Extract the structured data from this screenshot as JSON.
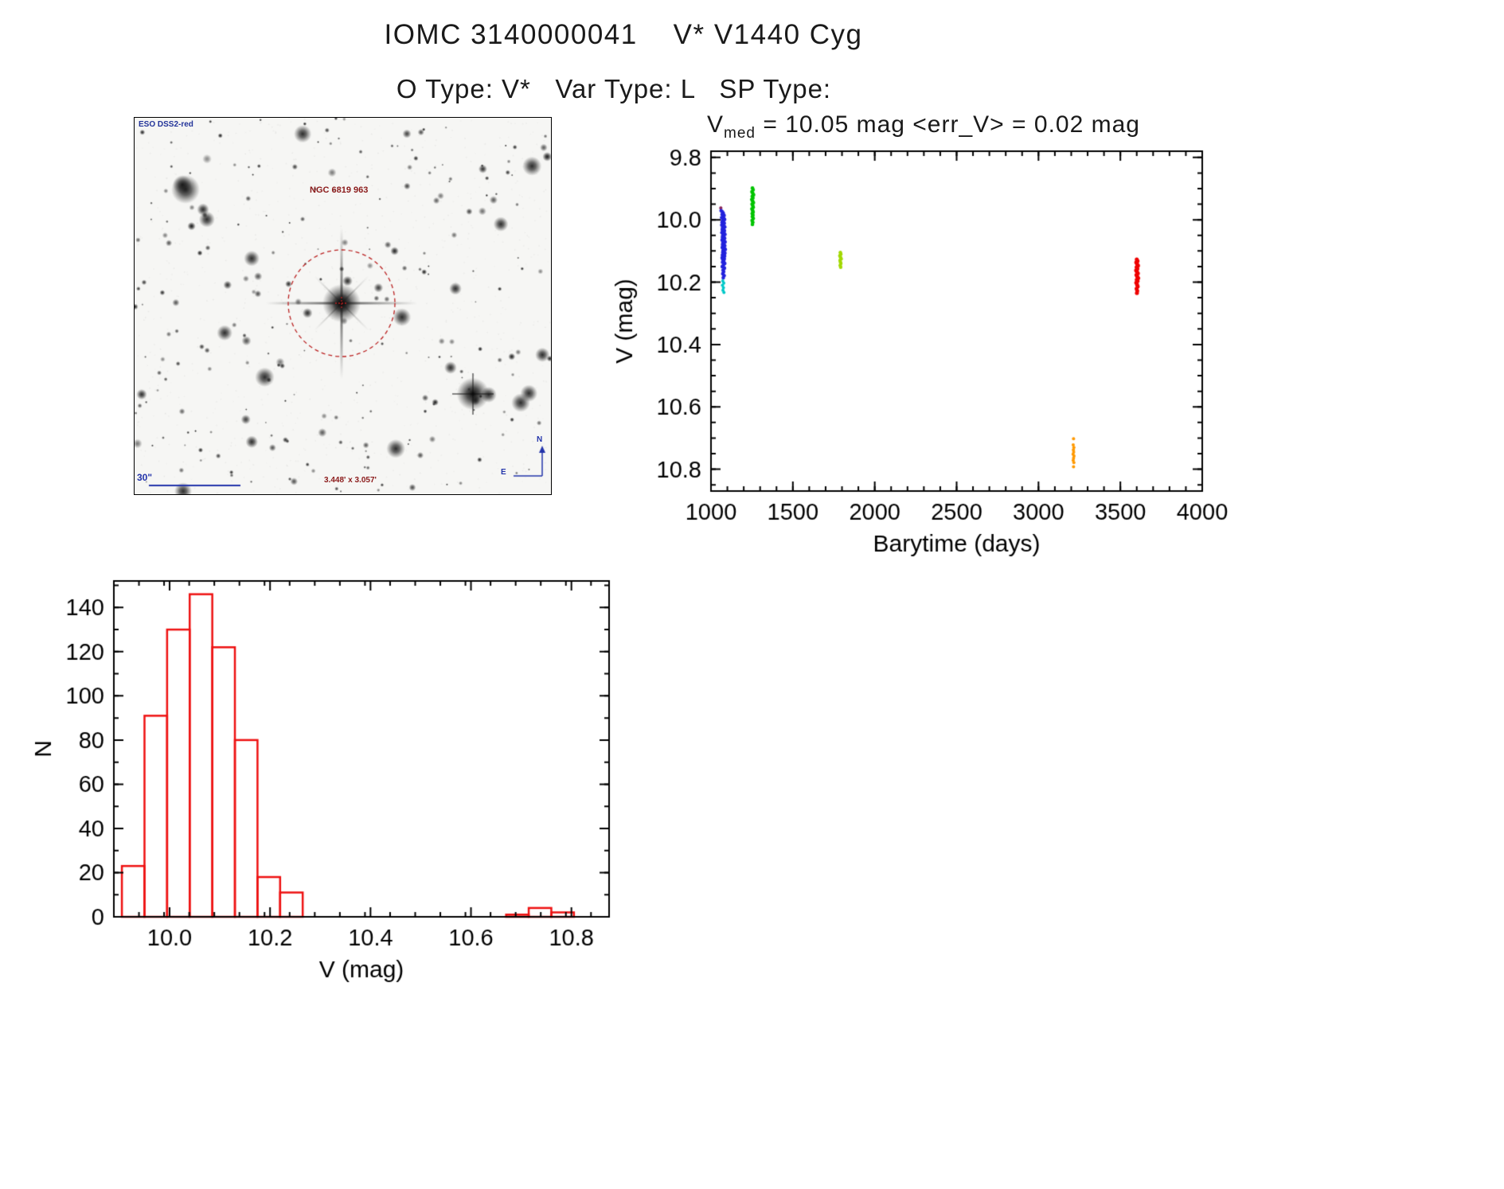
{
  "header": {
    "title": "IOMC 3140000041    V* V1440 Cyg",
    "subtitle": "O Type: V*   Var Type: L   SP Type:"
  },
  "finder": {
    "survey_label": "ESO DSS2-red",
    "object_label": "NGC 6819 963",
    "scale_label": "30\"",
    "fov_label": "3.448' x 3.057'",
    "compass_n": "N",
    "compass_e": "E",
    "annotation_red": "#bb2222",
    "annotation_blue": "#2233aa"
  },
  "lightcurve_title": {
    "prefix": "V",
    "sub": "med",
    "rest": " = 10.05 mag <err_V> = 0.02 mag"
  },
  "chart_data": [
    {
      "type": "scatter",
      "title": "V_med = 10.05 mag  <err_V> = 0.02 mag",
      "xlabel": "Barytime (days)",
      "ylabel": "V (mag)",
      "xlim": [
        1000,
        4000
      ],
      "ylim": [
        9.78,
        10.87
      ],
      "y_axis_inverted_magnitudes": true,
      "grid": false,
      "xticks": [
        1000,
        1500,
        2000,
        2500,
        3000,
        3500,
        4000
      ],
      "yticks": [
        9.8,
        10.0,
        10.2,
        10.4,
        10.6,
        10.8
      ],
      "x_minor_step": 100,
      "y_minor_step": 0.05,
      "series": [
        {
          "name": "epoch-1-outlier",
          "color": "#882255",
          "size": 2.0,
          "points": [
            [
              1060,
              9.962
            ]
          ]
        },
        {
          "name": "epoch-1-blue",
          "color": "#2222dd",
          "size": 2.3,
          "points": [
            [
              1062,
              9.971
            ],
            [
              1070,
              9.975
            ],
            [
              1075,
              9.979
            ],
            [
              1068,
              9.983
            ],
            [
              1080,
              9.986
            ],
            [
              1073,
              9.99
            ],
            [
              1065,
              9.993
            ],
            [
              1078,
              9.996
            ],
            [
              1083,
              9.999
            ],
            [
              1070,
              10.002
            ],
            [
              1075,
              10.005
            ],
            [
              1068,
              10.008
            ],
            [
              1081,
              10.011
            ],
            [
              1073,
              10.014
            ],
            [
              1066,
              10.017
            ],
            [
              1079,
              10.02
            ],
            [
              1084,
              10.023
            ],
            [
              1071,
              10.026
            ],
            [
              1076,
              10.029
            ],
            [
              1069,
              10.032
            ],
            [
              1082,
              10.035
            ],
            [
              1074,
              10.038
            ],
            [
              1067,
              10.041
            ],
            [
              1080,
              10.044
            ],
            [
              1085,
              10.047
            ],
            [
              1072,
              10.05
            ],
            [
              1077,
              10.053
            ],
            [
              1070,
              10.056
            ],
            [
              1083,
              10.059
            ],
            [
              1075,
              10.062
            ],
            [
              1068,
              10.065
            ],
            [
              1081,
              10.068
            ],
            [
              1086,
              10.071
            ],
            [
              1073,
              10.074
            ],
            [
              1078,
              10.077
            ],
            [
              1071,
              10.08
            ],
            [
              1084,
              10.083
            ],
            [
              1076,
              10.086
            ],
            [
              1069,
              10.089
            ],
            [
              1082,
              10.092
            ],
            [
              1087,
              10.095
            ],
            [
              1074,
              10.098
            ],
            [
              1079,
              10.101
            ],
            [
              1072,
              10.104
            ],
            [
              1085,
              10.107
            ],
            [
              1077,
              10.11
            ],
            [
              1070,
              10.113
            ],
            [
              1083,
              10.116
            ],
            [
              1075,
              10.119
            ],
            [
              1068,
              10.122
            ],
            [
              1081,
              10.125
            ],
            [
              1073,
              10.128
            ],
            [
              1078,
              10.132
            ],
            [
              1071,
              10.136
            ],
            [
              1084,
              10.14
            ],
            [
              1076,
              10.145
            ],
            [
              1069,
              10.15
            ],
            [
              1082,
              10.155
            ],
            [
              1074,
              10.161
            ],
            [
              1077,
              10.167
            ],
            [
              1072,
              10.173
            ],
            [
              1080,
              10.179
            ],
            [
              1075,
              10.186
            ]
          ]
        },
        {
          "name": "epoch-1-cyan",
          "color": "#00c8c8",
          "size": 2.0,
          "points": [
            [
              1072,
              10.196
            ],
            [
              1078,
              10.203
            ],
            [
              1070,
              10.21
            ],
            [
              1076,
              10.218
            ],
            [
              1073,
              10.226
            ],
            [
              1079,
              10.233
            ]
          ]
        },
        {
          "name": "epoch-2-green",
          "color": "#00c400",
          "size": 2.3,
          "points": [
            [
              1253,
              9.898
            ],
            [
              1257,
              9.904
            ],
            [
              1250,
              9.91
            ],
            [
              1255,
              9.915
            ],
            [
              1260,
              9.92
            ],
            [
              1252,
              9.925
            ],
            [
              1256,
              9.93
            ],
            [
              1249,
              9.935
            ],
            [
              1254,
              9.94
            ],
            [
              1259,
              9.945
            ],
            [
              1251,
              9.95
            ],
            [
              1255,
              9.955
            ],
            [
              1258,
              9.96
            ],
            [
              1250,
              9.965
            ],
            [
              1254,
              9.97
            ],
            [
              1257,
              9.975
            ],
            [
              1252,
              9.98
            ],
            [
              1256,
              9.985
            ],
            [
              1253,
              9.99
            ],
            [
              1258,
              9.996
            ],
            [
              1251,
              10.002
            ],
            [
              1255,
              10.008
            ],
            [
              1253,
              10.015
            ]
          ]
        },
        {
          "name": "epoch-3-chartreuse",
          "color": "#a2d900",
          "size": 2.2,
          "points": [
            [
              1790,
              10.105
            ],
            [
              1793,
              10.11
            ],
            [
              1787,
              10.115
            ],
            [
              1791,
              10.12
            ],
            [
              1795,
              10.125
            ],
            [
              1788,
              10.13
            ],
            [
              1790,
              10.135
            ],
            [
              1793,
              10.14
            ],
            [
              1789,
              10.146
            ],
            [
              1792,
              10.152
            ]
          ]
        },
        {
          "name": "epoch-4-orange",
          "color": "#ff9900",
          "size": 2.0,
          "points": [
            [
              3214,
              10.702
            ],
            [
              3212,
              10.722
            ],
            [
              3216,
              10.73
            ],
            [
              3213,
              10.738
            ],
            [
              3215,
              10.745
            ],
            [
              3211,
              10.752
            ],
            [
              3217,
              10.758
            ],
            [
              3214,
              10.765
            ],
            [
              3212,
              10.772
            ],
            [
              3216,
              10.779
            ],
            [
              3214,
              10.792
            ]
          ]
        },
        {
          "name": "epoch-5-red",
          "color": "#ee0000",
          "size": 2.5,
          "points": [
            [
              3600,
              10.127
            ],
            [
              3605,
              10.132
            ],
            [
              3597,
              10.137
            ],
            [
              3602,
              10.142
            ],
            [
              3608,
              10.147
            ],
            [
              3599,
              10.152
            ],
            [
              3604,
              10.157
            ],
            [
              3596,
              10.162
            ],
            [
              3601,
              10.167
            ],
            [
              3607,
              10.172
            ],
            [
              3598,
              10.177
            ],
            [
              3603,
              10.182
            ],
            [
              3609,
              10.187
            ],
            [
              3600,
              10.192
            ],
            [
              3605,
              10.197
            ],
            [
              3597,
              10.202
            ],
            [
              3602,
              10.208
            ],
            [
              3606,
              10.214
            ],
            [
              3599,
              10.221
            ],
            [
              3603,
              10.228
            ],
            [
              3601,
              10.235
            ]
          ]
        }
      ]
    },
    {
      "type": "histogram",
      "xlabel": "V (mag)",
      "ylabel": "N",
      "bar_color": "#ee1111",
      "xlim": [
        9.889,
        10.875
      ],
      "ylim": [
        0,
        152
      ],
      "grid": false,
      "xticks": [
        10.0,
        10.2,
        10.4,
        10.6,
        10.8
      ],
      "yticks": [
        0,
        20,
        40,
        60,
        80,
        100,
        120,
        140
      ],
      "x_minor_step": 0.05,
      "y_minor_step": 10,
      "bin_start": 9.905,
      "bin_width": 0.045,
      "counts": [
        23,
        91,
        130,
        146,
        122,
        80,
        18,
        11,
        0,
        0,
        0,
        0,
        0,
        0,
        0,
        0,
        0,
        1,
        4,
        2
      ]
    }
  ]
}
